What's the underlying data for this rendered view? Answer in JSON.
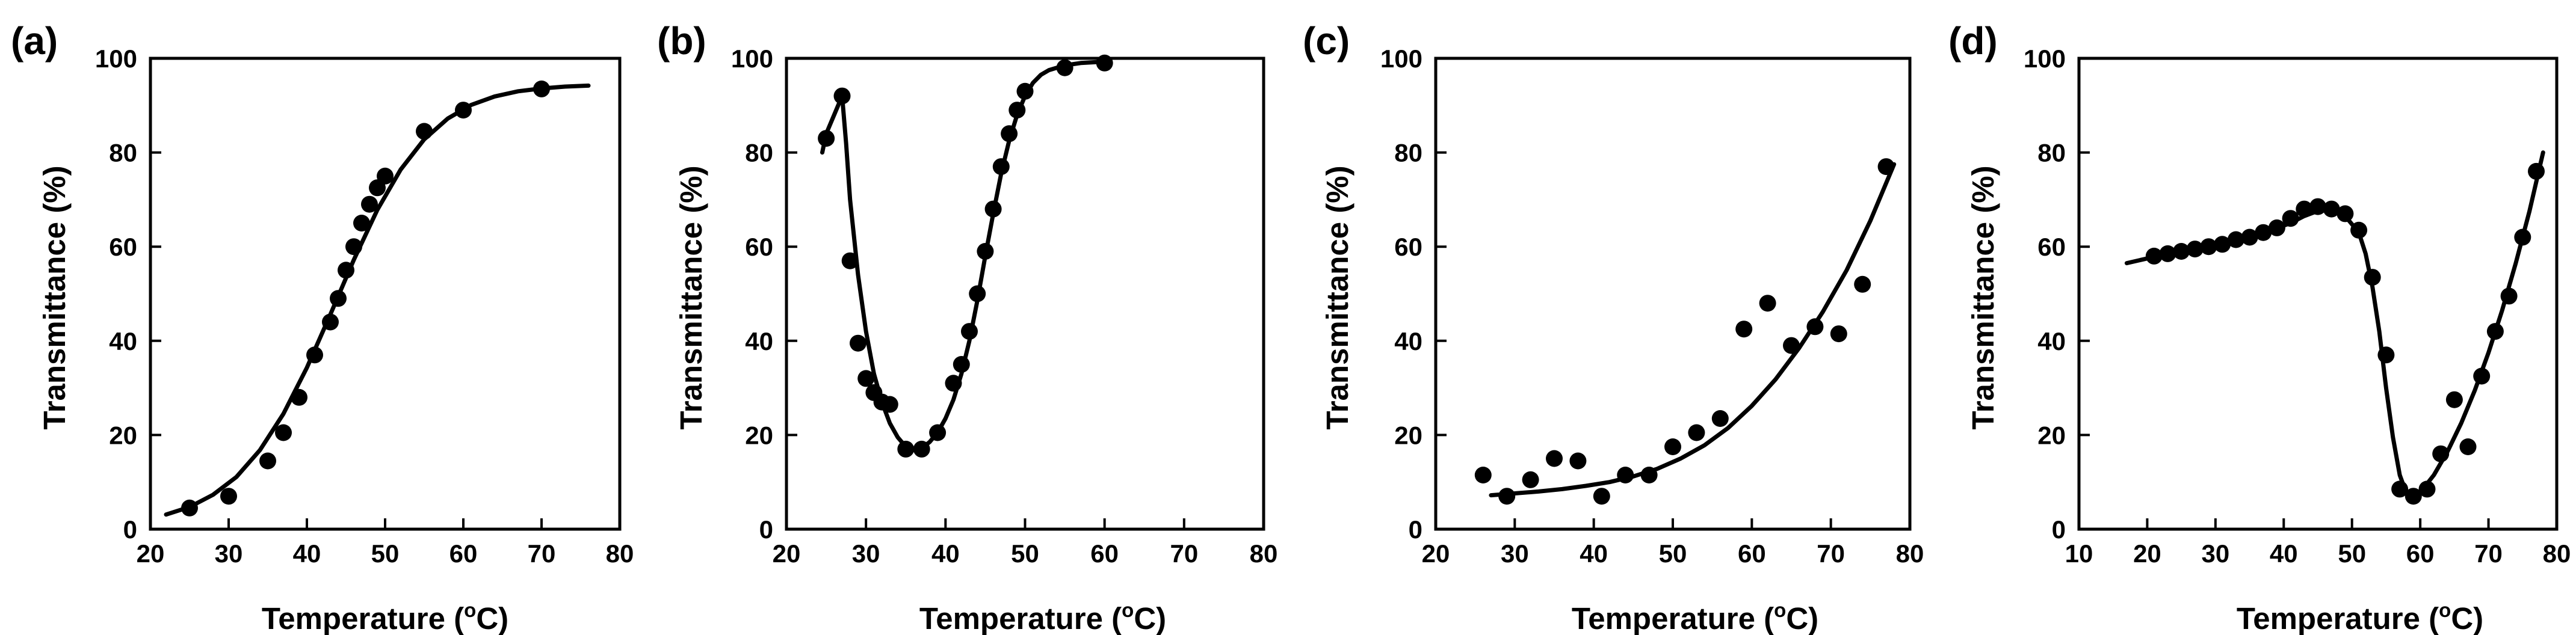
{
  "chart_data": [
    {
      "panel": "(a)",
      "type": "scatter",
      "xlabel_prefix": "Temperature (",
      "xlabel_sup": "o",
      "xlabel_suffix": "C)",
      "ylabel": "Transmittance (%)",
      "xlim": [
        20,
        80
      ],
      "ylim": [
        0,
        100
      ],
      "xticks": [
        "20",
        "30",
        "40",
        "50",
        "60",
        "70",
        "80"
      ],
      "yticks": [
        "0",
        "20",
        "40",
        "60",
        "80",
        "100"
      ],
      "points": {
        "x": [
          25,
          30,
          35,
          37,
          39,
          41,
          43,
          44,
          45,
          46,
          47,
          48,
          49,
          50,
          55,
          60,
          70
        ],
        "y": [
          4.5,
          7,
          14.5,
          20.5,
          28,
          37,
          44,
          49,
          55,
          60,
          65,
          69,
          72.5,
          75,
          84.5,
          89,
          93.5
        ]
      },
      "fit": {
        "x": [
          22,
          25,
          28,
          31,
          34,
          37,
          40,
          43,
          46,
          49,
          52,
          55,
          58,
          61,
          64,
          67,
          70,
          73,
          76
        ],
        "y": [
          3.1,
          4.7,
          7.3,
          11.1,
          16.8,
          24.5,
          34.3,
          45.6,
          57.2,
          67.8,
          76.4,
          82.8,
          87.2,
          90.1,
          91.9,
          93.0,
          93.6,
          94.0,
          94.2
        ]
      }
    },
    {
      "panel": "(b)",
      "type": "scatter",
      "xlabel_prefix": "Temperature (",
      "xlabel_sup": "o",
      "xlabel_suffix": "C)",
      "ylabel": "Transmittance (%)",
      "xlim": [
        20,
        80
      ],
      "ylim": [
        0,
        100
      ],
      "xticks": [
        "20",
        "30",
        "40",
        "50",
        "60",
        "70",
        "80"
      ],
      "yticks": [
        "0",
        "20",
        "40",
        "60",
        "80",
        "100"
      ],
      "points": {
        "x": [
          25,
          27,
          28,
          29,
          30,
          31,
          32,
          33,
          35,
          37,
          39,
          41,
          42,
          43,
          44,
          45,
          46,
          47,
          48,
          49,
          50,
          55,
          60
        ],
        "y": [
          83,
          92,
          57,
          39.5,
          32,
          29,
          27,
          26.5,
          17,
          17,
          20.5,
          31,
          35,
          42,
          50,
          59,
          68,
          77,
          84,
          89,
          93,
          98,
          99
        ]
      },
      "fit": {
        "x": [
          24.5,
          25,
          26,
          27,
          27.5,
          28,
          29,
          30,
          31,
          32,
          33,
          34,
          35,
          36,
          37,
          38,
          39,
          40,
          41,
          42,
          43,
          44,
          45,
          46,
          47,
          48,
          49,
          50,
          51,
          52,
          53,
          55,
          57,
          60
        ],
        "y": [
          80,
          84,
          88,
          92,
          82,
          70,
          54,
          42,
          33,
          27,
          22.5,
          19.5,
          17.5,
          16.8,
          17.2,
          18.5,
          20.5,
          23.5,
          27.5,
          33,
          40,
          48.5,
          58,
          67,
          75.5,
          82.5,
          88,
          92,
          94.8,
          96.5,
          97.5,
          98.5,
          99,
          99.3
        ]
      }
    },
    {
      "panel": "(c)",
      "type": "scatter",
      "xlabel_prefix": "Temperature (",
      "xlabel_sup": "o",
      "xlabel_suffix": "C)",
      "ylabel": "Transmittance (%)",
      "xlim": [
        20,
        80
      ],
      "ylim": [
        0,
        100
      ],
      "xticks": [
        "20",
        "30",
        "40",
        "50",
        "60",
        "70",
        "80"
      ],
      "yticks": [
        "0",
        "20",
        "40",
        "60",
        "80",
        "100"
      ],
      "points": {
        "x": [
          26,
          29,
          32,
          35,
          38,
          41,
          44,
          47,
          50,
          53,
          56,
          59,
          62,
          65,
          68,
          71,
          74,
          77
        ],
        "y": [
          11.5,
          7,
          10.5,
          15,
          14.5,
          7,
          11.5,
          11.5,
          17.5,
          20.5,
          23.5,
          42.5,
          48,
          39,
          43,
          41.5,
          52,
          77
        ]
      },
      "fit": {
        "x": [
          27,
          30,
          33,
          36,
          39,
          42,
          45,
          48,
          51,
          54,
          57,
          60,
          63,
          66,
          69,
          72,
          75,
          78
        ],
        "y": [
          7.2,
          7.6,
          8.0,
          8.5,
          9.2,
          10.0,
          11.2,
          12.8,
          15.0,
          17.8,
          21.5,
          26.2,
          31.8,
          38.5,
          46.2,
          55.0,
          65.5,
          77.5
        ]
      }
    },
    {
      "panel": "(d)",
      "type": "scatter",
      "xlabel_prefix": "Temperature (",
      "xlabel_sup": "o",
      "xlabel_suffix": "C)",
      "ylabel": "Transmittance (%)",
      "xlim": [
        10,
        80
      ],
      "ylim": [
        0,
        100
      ],
      "xticks": [
        "10",
        "20",
        "30",
        "40",
        "50",
        "60",
        "70",
        "80"
      ],
      "yticks": [
        "0",
        "20",
        "40",
        "60",
        "80",
        "100"
      ],
      "points": {
        "x": [
          21,
          23,
          25,
          27,
          29,
          31,
          33,
          35,
          37,
          39,
          41,
          43,
          45,
          47,
          49,
          51,
          53,
          55,
          57,
          59,
          61,
          63,
          65,
          67,
          69,
          71,
          73,
          75,
          77
        ],
        "y": [
          58,
          58.5,
          59,
          59.5,
          60,
          60.5,
          61.5,
          62,
          63,
          64,
          66,
          68,
          68.5,
          68,
          67,
          63.5,
          53.5,
          37,
          8.5,
          7,
          8.5,
          16,
          27.5,
          17.5,
          32.5,
          42,
          49.5,
          62,
          76
        ]
      },
      "fit": {
        "x": [
          17,
          20,
          23,
          26,
          29,
          32,
          35,
          38,
          41,
          43,
          45,
          47,
          49,
          51,
          52,
          53,
          54,
          55,
          56,
          57,
          58,
          59,
          60,
          62,
          64,
          66,
          68,
          70,
          72,
          74,
          76,
          78
        ],
        "y": [
          56.5,
          57.5,
          58.5,
          59.5,
          60.3,
          61.2,
          62.2,
          63.4,
          65.0,
          66.5,
          67.6,
          67.8,
          66.5,
          63.0,
          58.5,
          51.5,
          42,
          30,
          19.5,
          11.5,
          7.5,
          6.8,
          7.8,
          11.5,
          16.5,
          22.5,
          29.5,
          37.5,
          46.5,
          56.5,
          67.5,
          80
        ]
      }
    }
  ]
}
